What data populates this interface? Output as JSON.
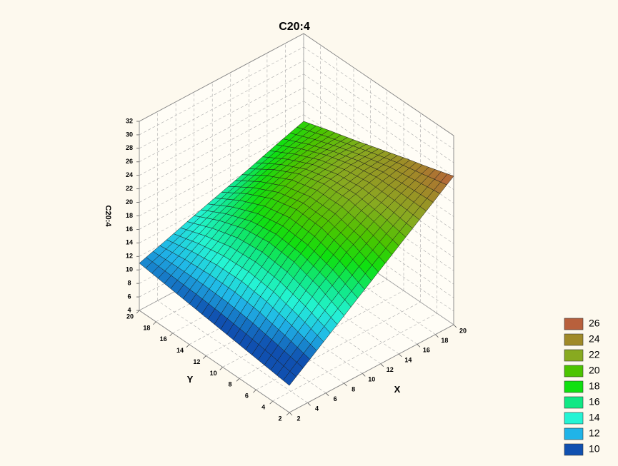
{
  "chart_data": {
    "type": "surface3d",
    "title": "C20:4",
    "x_label": "X",
    "y_label": "Y",
    "z_label": "C20:4",
    "x": [
      2,
      5,
      8,
      11,
      14,
      17,
      20
    ],
    "y": [
      2,
      5,
      8,
      11,
      14,
      17,
      20
    ],
    "z": [
      [
        8,
        8.5,
        9,
        9.5,
        10,
        10.5,
        11
      ],
      [
        11.0,
        12.2,
        13.2,
        13.7,
        13.6,
        13.1,
        12.3
      ],
      [
        14.0,
        15.7,
        16.9,
        17.3,
        16.8,
        15.5,
        13.7
      ],
      [
        17.0,
        18.7,
        19.8,
        20.0,
        19.1,
        17.3,
        15.0
      ],
      [
        20.0,
        21.1,
        21.8,
        21.6,
        20.6,
        18.7,
        16.3
      ],
      [
        23.0,
        23.1,
        23.0,
        22.3,
        21.2,
        19.6,
        17.7
      ],
      [
        26,
        24.8,
        23.7,
        22.5,
        21.3,
        20.2,
        19
      ]
    ],
    "xlim": [
      2,
      20
    ],
    "ylim": [
      2,
      20
    ],
    "zlim": [
      4,
      32
    ],
    "xticks": [
      2,
      4,
      6,
      8,
      10,
      12,
      14,
      16,
      18,
      20
    ],
    "yticks": [
      2,
      4,
      6,
      8,
      10,
      12,
      14,
      16,
      18,
      20
    ],
    "zticks": [
      4,
      6,
      8,
      10,
      12,
      14,
      16,
      18,
      20,
      22,
      24,
      26,
      28,
      30,
      32
    ],
    "grid": true,
    "legend": {
      "position": "lower right",
      "levels": [
        26,
        24,
        22,
        20,
        18,
        16,
        14,
        12,
        10
      ],
      "colors": [
        "#b8603c",
        "#a08a28",
        "#88aa20",
        "#4cc400",
        "#10e010",
        "#10e884",
        "#24f4d4",
        "#20b4e8",
        "#1050b0"
      ]
    }
  }
}
